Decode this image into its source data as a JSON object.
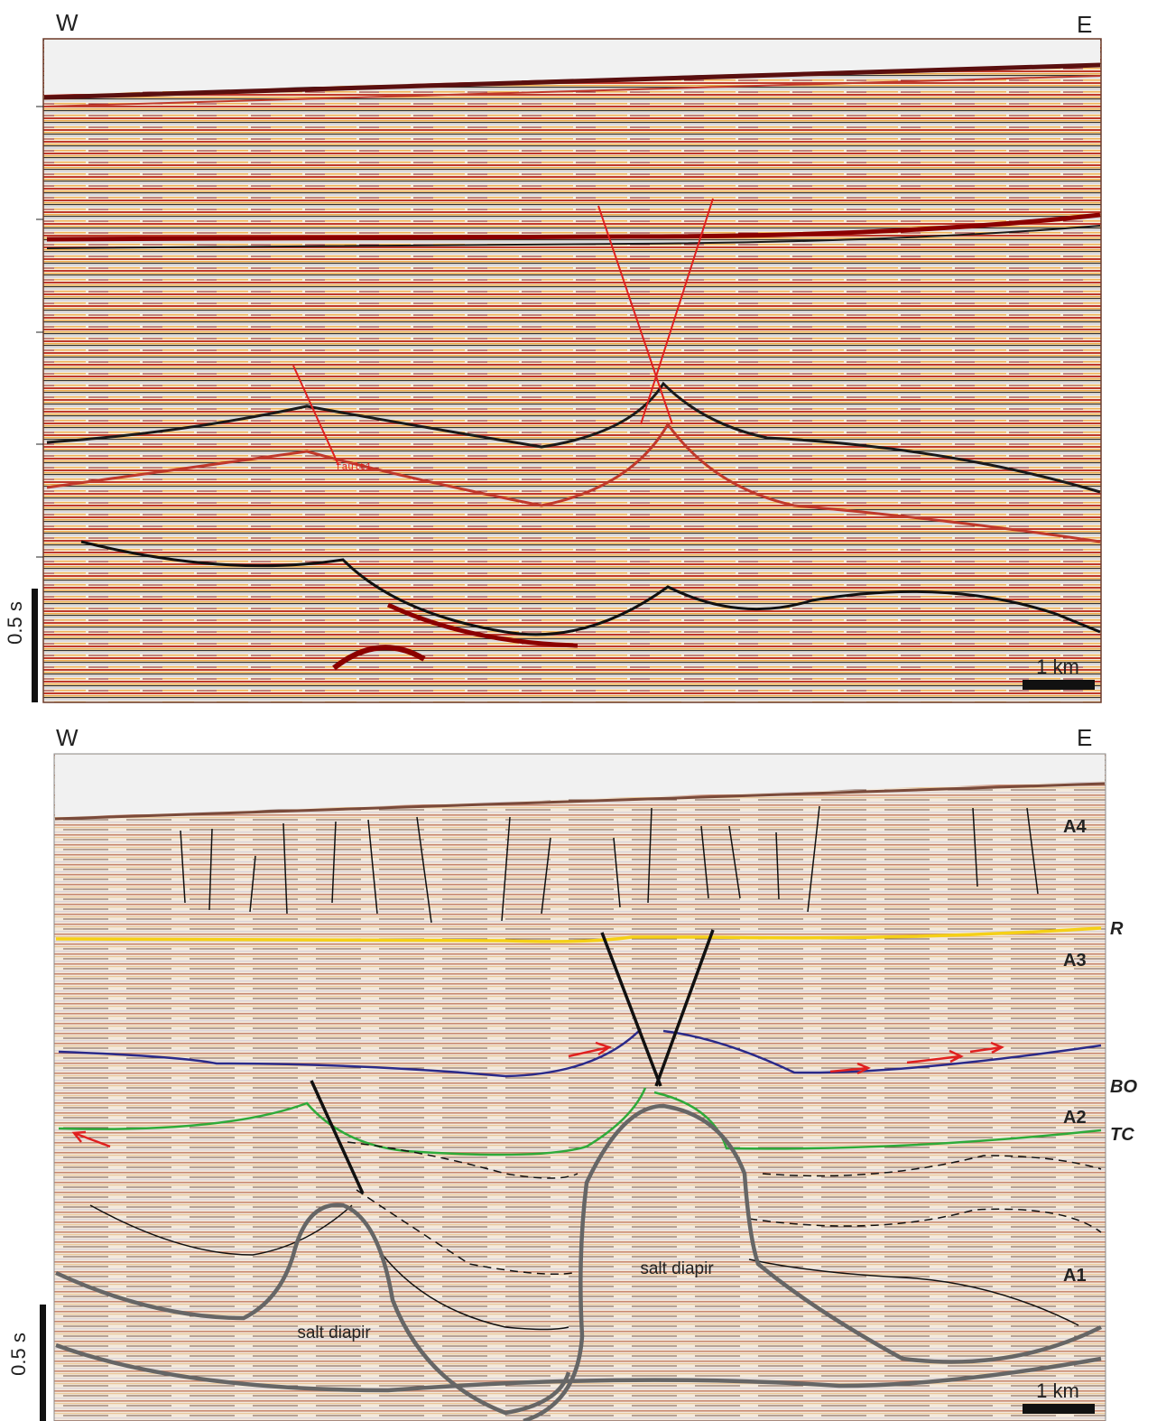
{
  "panels": [
    {
      "west": "W",
      "east": "E",
      "time_scale": "0.5 s",
      "distance_scale": "1 km",
      "fault_label": "fault1"
    },
    {
      "west": "W",
      "east": "E",
      "time_scale": "0.5 s",
      "distance_scale": "1 km",
      "units": [
        "A4",
        "A3",
        "A2",
        "A1"
      ],
      "horizons": [
        "R",
        "BO",
        "TC"
      ],
      "structures": [
        "salt diapir",
        "salt diapir"
      ]
    }
  ]
}
